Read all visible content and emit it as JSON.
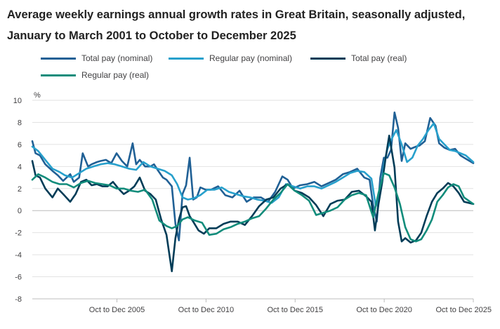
{
  "chart_data": {
    "type": "line",
    "title": "Average weekly earnings annual growth rates in Great Britain, seasonally adjusted, January to March 2001 to October to December 2025",
    "ylabel": "%",
    "xlabel": "",
    "ylim": [
      -8,
      10
    ],
    "yticks": [
      -8,
      -6,
      -4,
      -2,
      0,
      2,
      4,
      6,
      8,
      10
    ],
    "xlim": [
      2001.17,
      2025.92
    ],
    "xticks": [
      {
        "label": "Oct to Dec 2005",
        "x": 2005.92
      },
      {
        "label": "Oct to Dec 2010",
        "x": 2010.92
      },
      {
        "label": "Oct to Dec 2015",
        "x": 2015.92
      },
      {
        "label": "Oct to Dec 2020",
        "x": 2020.92
      },
      {
        "label": "Oct to Dec 2025",
        "x": 2025.92
      }
    ],
    "grid": "horizontal",
    "legend_position": "top",
    "series": [
      {
        "name": "Total pay (nominal)",
        "color": "#206095",
        "x": [
          2001.17,
          2001.35,
          2001.6,
          2001.9,
          2002.3,
          2002.6,
          2002.9,
          2003.3,
          2003.5,
          2003.8,
          2004.0,
          2004.3,
          2004.5,
          2004.8,
          2005.0,
          2005.3,
          2005.6,
          2005.9,
          2006.2,
          2006.5,
          2006.8,
          2007.0,
          2007.2,
          2007.5,
          2007.8,
          2008.0,
          2008.2,
          2008.5,
          2008.7,
          2009.0,
          2009.2,
          2009.4,
          2009.6,
          2009.8,
          2010.0,
          2010.2,
          2010.4,
          2010.6,
          2010.9,
          2011.2,
          2011.6,
          2012.0,
          2012.4,
          2012.8,
          2013.2,
          2013.6,
          2014.0,
          2014.4,
          2014.8,
          2015.2,
          2015.5,
          2015.8,
          2016.2,
          2016.6,
          2017.0,
          2017.4,
          2017.8,
          2018.2,
          2018.6,
          2019.0,
          2019.4,
          2019.8,
          2020.1,
          2020.3,
          2020.5,
          2020.7,
          2020.9,
          2021.1,
          2021.3,
          2021.5,
          2021.7,
          2021.9,
          2022.1,
          2022.4,
          2022.7,
          2022.9,
          2023.2,
          2023.5,
          2023.8,
          2024.0,
          2024.3,
          2024.6,
          2024.9,
          2025.2,
          2025.5,
          2025.92
        ],
        "y": [
          6.3,
          5.2,
          5.0,
          4.2,
          3.6,
          3.2,
          2.7,
          3.3,
          2.6,
          3.0,
          5.2,
          4.0,
          4.2,
          4.4,
          4.5,
          4.6,
          4.3,
          5.2,
          4.5,
          4.0,
          6.1,
          4.2,
          4.6,
          4.0,
          4.0,
          4.2,
          3.7,
          3.0,
          2.8,
          2.2,
          -1.2,
          -2.7,
          1.5,
          2.3,
          4.8,
          1.0,
          1.2,
          2.1,
          1.9,
          1.9,
          2.2,
          1.4,
          1.2,
          1.8,
          0.8,
          1.2,
          1.2,
          0.8,
          1.7,
          3.1,
          2.8,
          2.0,
          2.3,
          2.4,
          2.6,
          2.2,
          2.5,
          2.8,
          3.3,
          3.5,
          3.8,
          3.0,
          2.8,
          0.5,
          -1.0,
          3.0,
          4.8,
          4.8,
          5.5,
          8.9,
          7.5,
          4.5,
          6.1,
          5.6,
          5.8,
          5.9,
          6.3,
          8.4,
          7.7,
          6.1,
          5.7,
          5.5,
          5.6,
          5.0,
          4.7,
          4.3
        ]
      },
      {
        "name": "Regular pay (nominal)",
        "color": "#27a0cc",
        "x": [
          2001.17,
          2001.5,
          2001.9,
          2002.3,
          2002.7,
          2003.0,
          2003.4,
          2003.8,
          2004.2,
          2004.6,
          2005.0,
          2005.4,
          2005.8,
          2006.2,
          2006.6,
          2007.0,
          2007.4,
          2007.8,
          2008.2,
          2008.6,
          2009.0,
          2009.3,
          2009.6,
          2009.9,
          2010.2,
          2010.6,
          2011.0,
          2011.4,
          2011.8,
          2012.2,
          2012.6,
          2013.0,
          2013.4,
          2013.8,
          2014.2,
          2014.6,
          2015.0,
          2015.4,
          2015.8,
          2016.2,
          2016.6,
          2017.0,
          2017.4,
          2017.8,
          2018.2,
          2018.6,
          2019.0,
          2019.4,
          2019.8,
          2020.2,
          2020.45,
          2020.7,
          2020.9,
          2021.1,
          2021.3,
          2021.6,
          2021.9,
          2022.2,
          2022.5,
          2022.8,
          2023.1,
          2023.4,
          2023.7,
          2024.0,
          2024.3,
          2024.6,
          2024.9,
          2025.2,
          2025.5,
          2025.92
        ],
        "y": [
          5.8,
          5.4,
          4.6,
          3.8,
          3.5,
          3.2,
          3.0,
          3.4,
          3.8,
          4.0,
          4.2,
          4.3,
          4.2,
          4.0,
          3.8,
          3.7,
          4.4,
          4.0,
          3.8,
          3.6,
          3.2,
          2.4,
          1.2,
          1.0,
          1.1,
          1.4,
          1.9,
          1.9,
          2.1,
          1.7,
          1.5,
          1.3,
          1.2,
          1.0,
          0.9,
          0.7,
          1.2,
          2.4,
          2.2,
          2.0,
          2.2,
          2.2,
          2.0,
          2.3,
          2.6,
          3.0,
          3.4,
          3.6,
          3.5,
          2.9,
          0.4,
          1.6,
          4.1,
          5.6,
          6.4,
          7.3,
          6.0,
          4.4,
          4.8,
          5.9,
          6.5,
          7.3,
          7.9,
          6.5,
          6.0,
          5.5,
          5.4,
          5.2,
          5.0,
          4.4
        ]
      },
      {
        "name": "Total pay (real)",
        "color": "#003c57",
        "x": [
          2001.17,
          2001.35,
          2001.6,
          2001.9,
          2002.3,
          2002.6,
          2002.9,
          2003.3,
          2003.6,
          2003.9,
          2004.2,
          2004.5,
          2004.8,
          2005.1,
          2005.4,
          2005.7,
          2006.0,
          2006.3,
          2006.6,
          2006.9,
          2007.2,
          2007.5,
          2007.8,
          2008.1,
          2008.4,
          2008.7,
          2009.0,
          2009.2,
          2009.4,
          2009.6,
          2009.8,
          2010.0,
          2010.2,
          2010.5,
          2010.8,
          2011.1,
          2011.5,
          2011.9,
          2012.3,
          2012.7,
          2013.1,
          2013.5,
          2013.9,
          2014.3,
          2014.7,
          2015.1,
          2015.5,
          2015.9,
          2016.3,
          2016.7,
          2017.1,
          2017.5,
          2017.9,
          2018.3,
          2018.7,
          2019.1,
          2019.5,
          2019.9,
          2020.2,
          2020.4,
          2020.6,
          2020.8,
          2021.0,
          2021.2,
          2021.5,
          2021.7,
          2021.9,
          2022.1,
          2022.4,
          2022.7,
          2023.0,
          2023.3,
          2023.6,
          2023.9,
          2024.2,
          2024.5,
          2024.8,
          2025.1,
          2025.4,
          2025.92
        ],
        "y": [
          4.5,
          3.2,
          3.0,
          2.0,
          1.2,
          2.0,
          1.5,
          0.8,
          1.5,
          2.6,
          2.8,
          2.3,
          2.4,
          2.2,
          2.2,
          2.6,
          2.0,
          1.5,
          1.8,
          2.2,
          3.0,
          1.8,
          1.5,
          1.0,
          -0.8,
          -2.2,
          -5.5,
          -2.5,
          -0.8,
          0.3,
          0.4,
          -0.5,
          -1.0,
          -1.8,
          -2.1,
          -1.6,
          -1.6,
          -1.2,
          -1.0,
          -1.0,
          -1.3,
          -0.5,
          0.4,
          1.0,
          1.2,
          2.0,
          2.4,
          1.8,
          1.6,
          1.2,
          0.5,
          -0.5,
          0.6,
          0.9,
          1.0,
          1.7,
          1.8,
          1.3,
          0.8,
          -1.8,
          0.6,
          2.5,
          4.8,
          6.8,
          3.9,
          -1.0,
          -2.8,
          -2.5,
          -2.9,
          -2.7,
          -2.0,
          -0.5,
          0.8,
          1.6,
          2.0,
          2.5,
          2.2,
          1.6,
          0.8,
          0.6
        ]
      },
      {
        "name": "Regular pay (real)",
        "color": "#118c7b",
        "x": [
          2001.17,
          2001.5,
          2001.9,
          2002.3,
          2002.7,
          2003.1,
          2003.5,
          2003.9,
          2004.3,
          2004.7,
          2005.1,
          2005.5,
          2005.9,
          2006.3,
          2006.7,
          2007.1,
          2007.5,
          2007.9,
          2008.3,
          2008.7,
          2009.0,
          2009.3,
          2009.6,
          2009.9,
          2010.3,
          2010.7,
          2011.1,
          2011.5,
          2011.9,
          2012.3,
          2012.7,
          2013.1,
          2013.5,
          2013.9,
          2014.3,
          2014.7,
          2015.1,
          2015.5,
          2015.9,
          2016.3,
          2016.7,
          2017.1,
          2017.5,
          2017.9,
          2018.3,
          2018.7,
          2019.1,
          2019.5,
          2019.9,
          2020.3,
          2020.6,
          2020.9,
          2021.2,
          2021.5,
          2021.8,
          2022.1,
          2022.4,
          2022.7,
          2023.0,
          2023.3,
          2023.6,
          2023.9,
          2024.2,
          2024.5,
          2024.8,
          2025.1,
          2025.4,
          2025.92
        ],
        "y": [
          2.8,
          3.3,
          3.0,
          2.6,
          2.4,
          2.4,
          2.1,
          2.5,
          2.7,
          2.5,
          2.4,
          2.3,
          2.0,
          2.0,
          1.8,
          1.7,
          1.9,
          1.0,
          -0.9,
          -1.4,
          -1.6,
          -1.4,
          -0.8,
          -0.6,
          -0.9,
          -1.1,
          -2.2,
          -2.1,
          -1.7,
          -1.5,
          -1.2,
          -1.0,
          -0.7,
          -0.5,
          0.2,
          1.0,
          1.6,
          2.4,
          1.8,
          1.4,
          0.9,
          -0.4,
          -0.2,
          0.0,
          0.3,
          1.0,
          1.4,
          1.6,
          1.4,
          -0.6,
          1.6,
          3.4,
          3.2,
          2.1,
          0.6,
          -1.5,
          -2.6,
          -2.8,
          -2.6,
          -1.8,
          -0.8,
          0.8,
          1.4,
          2.1,
          2.4,
          2.2,
          1.2,
          0.6
        ]
      }
    ]
  }
}
